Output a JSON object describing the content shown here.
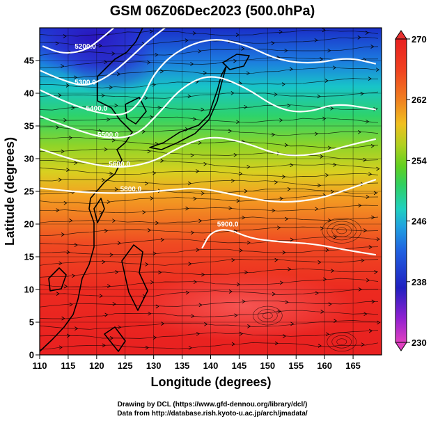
{
  "chart_data": {
    "type": "heatmap",
    "title": "GSM 06Z06Dec2023 (500.0hPa)",
    "xlabel": "Longitude (degrees)",
    "ylabel": "Latitude  (degrees)",
    "xlim": [
      110,
      170
    ],
    "ylim": [
      0,
      50
    ],
    "x_ticks": [
      "110",
      "115",
      "120",
      "125",
      "130",
      "135",
      "140",
      "145",
      "150",
      "155",
      "160",
      "165"
    ],
    "y_ticks": [
      "0",
      "5",
      "10",
      "15",
      "20",
      "25",
      "30",
      "35",
      "40",
      "45"
    ],
    "colorbar": {
      "min": 230,
      "max": 270,
      "tick_labels": [
        "270",
        "262",
        "254",
        "246",
        "238",
        "230"
      ],
      "colors": [
        "#e040c0",
        "#9020d0",
        "#2020c0",
        "#2060e0",
        "#20a0e0",
        "#20d0c0",
        "#30d060",
        "#60d020",
        "#b0d020",
        "#f0c020",
        "#f08020",
        "#f04020",
        "#e82020"
      ]
    },
    "contours": [
      {
        "label": "5200.0",
        "points": [
          [
            110.5,
            47.2
          ],
          [
            114,
            46
          ],
          [
            118,
            46.5
          ],
          [
            121,
            48.5
          ],
          [
            123,
            50
          ]
        ]
      },
      {
        "label": "5300.0",
        "points": [
          [
            110,
            43.5
          ],
          [
            114,
            42
          ],
          [
            118,
            41
          ],
          [
            122,
            42.5
          ],
          [
            126,
            45.5
          ],
          [
            129,
            48
          ],
          [
            132,
            50
          ]
        ]
      },
      {
        "label": "5400.0",
        "points": [
          [
            110,
            40.5
          ],
          [
            115,
            38.5
          ],
          [
            120,
            37
          ],
          [
            125,
            36.5
          ],
          [
            128,
            39
          ],
          [
            130,
            43
          ],
          [
            134,
            46.5
          ],
          [
            140,
            48.5
          ],
          [
            146,
            47.5
          ],
          [
            152,
            45
          ],
          [
            158,
            44.5
          ],
          [
            164,
            45.5
          ],
          [
            169,
            44.5
          ]
        ]
      },
      {
        "label": "5500.0",
        "points": [
          [
            110,
            36.5
          ],
          [
            116,
            34.5
          ],
          [
            122,
            33
          ],
          [
            127,
            33.5
          ],
          [
            131,
            37
          ],
          [
            135,
            41
          ],
          [
            140,
            43
          ],
          [
            146,
            41
          ],
          [
            152,
            37.5
          ],
          [
            157,
            37
          ],
          [
            162,
            38.5
          ],
          [
            169,
            37.5
          ]
        ]
      },
      {
        "label": "5600.0",
        "points": [
          [
            110,
            31.5
          ],
          [
            117,
            29.5
          ],
          [
            124,
            28.5
          ],
          [
            130,
            29.5
          ],
          [
            135,
            32
          ],
          [
            140,
            33.5
          ],
          [
            146,
            32.5
          ],
          [
            152,
            30.5
          ],
          [
            158,
            30.5
          ],
          [
            164,
            32
          ],
          [
            169,
            33
          ]
        ]
      },
      {
        "label": "5800.0",
        "points": [
          [
            110,
            25.5
          ],
          [
            118,
            24.8
          ],
          [
            126,
            24.7
          ],
          [
            133,
            25.2
          ],
          [
            138,
            25.6
          ],
          [
            145,
            24.3
          ],
          [
            152,
            23.2
          ],
          [
            159,
            23.8
          ],
          [
            165,
            25.6
          ],
          [
            169,
            26.8
          ]
        ]
      },
      {
        "label": "5900.0",
        "points": [
          [
            138.5,
            16.3
          ],
          [
            140,
            18.8
          ],
          [
            143,
            19.3
          ],
          [
            147,
            17.8
          ],
          [
            152,
            17.3
          ],
          [
            158,
            17.0
          ],
          [
            164,
            16.0
          ],
          [
            169,
            15.3
          ]
        ]
      }
    ]
  },
  "credits": [
    "Drawing by DCL (https://www.gfd-dennou.org/library/dcl/)",
    "Data from http://database.rish.kyoto-u.ac.jp/arch/jmadata/"
  ]
}
